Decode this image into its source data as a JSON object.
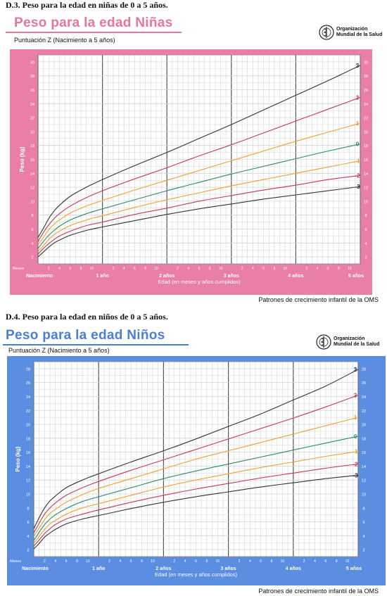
{
  "charts": [
    {
      "id": "girls",
      "section_heading": "D.3. Peso para la edad en niñas de 0 a 5 años.",
      "big_title": "Peso para la edad Niñas",
      "z_label": "Puntuación Z  (Nacimiento a 5 años)",
      "who_line1": "Organización",
      "who_line2": "Mundial de la Salud",
      "footer": "Patrones de crecimiento infantil de la OMS",
      "colors": {
        "frame": "#e97ea6",
        "title": "#e8759f",
        "bg": "#ffffff",
        "gridline": "#d4d4d4",
        "major": "#555555"
      }
    },
    {
      "id": "boys",
      "section_heading": "D.4. Peso para la edad en niños de 0 a 5 años.",
      "big_title": "Peso para la edad Niños",
      "z_label": "Puntuación Z (Nacimiento a 5 años)",
      "who_line1": "Organización",
      "who_line2": "Mundial de la Salud",
      "footer": "Patrones de crecimiento infantil de la OMS",
      "colors": {
        "frame": "#5b8ee0",
        "title": "#4a7fd6",
        "bg": "#ffffff",
        "gridline": "#d4d4d4",
        "major": "#555555"
      }
    }
  ],
  "chart_data": [
    {
      "type": "line",
      "title": "Peso para la edad Niñas",
      "subtitle": "Puntuación Z  (Nacimiento a 5 años)",
      "xlabel": "Edad (en meses y años cumplidos)",
      "ylabel": "Peso (kg)",
      "x_unit_label": "Meses",
      "xlim": [
        0,
        60
      ],
      "ylim": [
        1,
        31
      ],
      "y_ticks": [
        2,
        4,
        6,
        8,
        10,
        12,
        14,
        16,
        18,
        20,
        22,
        24,
        26,
        28,
        30
      ],
      "year_labels": [
        "Nacimiento",
        "1 año",
        "2 años",
        "3 años",
        "4 años",
        "5 años"
      ],
      "month_tick_labels": [
        "2",
        "4",
        "6",
        "8",
        "10"
      ],
      "grid": true,
      "legend": "right end labels",
      "x": [
        0,
        1,
        2,
        3,
        4,
        6,
        9,
        12,
        18,
        24,
        30,
        36,
        42,
        48,
        54,
        60
      ],
      "series": [
        {
          "name": "3",
          "color": "#333333",
          "values": [
            4.8,
            6.1,
            7.5,
            8.6,
            9.4,
            10.7,
            12.0,
            13.1,
            15.1,
            17.0,
            19.0,
            21.0,
            23.1,
            25.2,
            27.3,
            29.5
          ]
        },
        {
          "name": "2",
          "color": "#c03a5c",
          "values": [
            4.2,
            5.5,
            6.6,
            7.5,
            8.2,
            9.3,
            10.5,
            11.5,
            13.2,
            14.8,
            16.5,
            18.1,
            19.8,
            21.5,
            23.2,
            24.9
          ]
        },
        {
          "name": "1",
          "color": "#f0a030",
          "values": [
            3.7,
            4.8,
            5.9,
            6.7,
            7.3,
            8.3,
            9.3,
            10.1,
            11.6,
            13.0,
            14.4,
            15.8,
            17.2,
            18.6,
            19.9,
            21.2
          ]
        },
        {
          "name": "0",
          "color": "#2a8a6a",
          "values": [
            3.2,
            4.2,
            5.1,
            5.8,
            6.4,
            7.3,
            8.2,
            8.9,
            10.2,
            11.5,
            12.7,
            13.9,
            15.0,
            16.1,
            17.2,
            18.2
          ]
        },
        {
          "name": "-1",
          "color": "#f0a030",
          "values": [
            2.8,
            3.6,
            4.5,
            5.2,
            5.7,
            6.5,
            7.3,
            7.9,
            9.1,
            10.2,
            11.2,
            12.2,
            13.1,
            14.0,
            14.9,
            15.8
          ]
        },
        {
          "name": "-2",
          "color": "#c03a5c",
          "values": [
            2.4,
            3.2,
            3.9,
            4.5,
            5.0,
            5.7,
            6.5,
            7.0,
            8.1,
            9.0,
            10.0,
            10.8,
            11.6,
            12.3,
            13.1,
            13.7
          ]
        },
        {
          "name": "-3",
          "color": "#333333",
          "values": [
            2.0,
            2.7,
            3.4,
            4.0,
            4.4,
            5.1,
            5.8,
            6.3,
            7.2,
            8.1,
            8.9,
            9.6,
            10.3,
            10.9,
            11.5,
            12.1
          ]
        }
      ]
    },
    {
      "type": "line",
      "title": "Peso para la edad Niños",
      "subtitle": "Puntuación Z (Nacimiento a 5 años)",
      "xlabel": "Edad (en meses y años cumplidos)",
      "ylabel": "Peso (kg)",
      "x_unit_label": "Meses",
      "xlim": [
        0,
        60
      ],
      "ylim": [
        1,
        29
      ],
      "y_ticks": [
        2,
        4,
        6,
        8,
        10,
        12,
        14,
        16,
        18,
        20,
        22,
        24,
        26,
        28
      ],
      "year_labels": [
        "Nacimiento",
        "1 año",
        "2 años",
        "3 años",
        "4 años",
        "5 años"
      ],
      "month_tick_labels": [
        "2",
        "4",
        "6",
        "8",
        "10"
      ],
      "grid": true,
      "legend": "right end labels",
      "x": [
        0,
        1,
        2,
        3,
        4,
        6,
        9,
        12,
        18,
        24,
        30,
        36,
        42,
        48,
        54,
        60
      ],
      "series": [
        {
          "name": "3",
          "color": "#333333",
          "values": [
            5.0,
            6.6,
            8.0,
            9.0,
            9.7,
            10.9,
            12.0,
            12.9,
            14.6,
            16.2,
            17.9,
            19.7,
            21.5,
            23.5,
            25.5,
            27.9
          ]
        },
        {
          "name": "2",
          "color": "#c03a5c",
          "values": [
            4.4,
            5.8,
            7.1,
            8.0,
            8.7,
            9.8,
            10.9,
            11.8,
            13.4,
            14.9,
            16.4,
            17.9,
            19.4,
            20.9,
            22.5,
            24.2
          ]
        },
        {
          "name": "1",
          "color": "#f0a030",
          "values": [
            3.9,
            5.1,
            6.3,
            7.2,
            7.8,
            8.8,
            9.9,
            10.8,
            12.2,
            13.6,
            15.0,
            16.2,
            17.4,
            18.6,
            19.8,
            21.0
          ]
        },
        {
          "name": "0",
          "color": "#2a8a6a",
          "values": [
            3.3,
            4.5,
            5.6,
            6.4,
            7.0,
            7.9,
            8.9,
            9.6,
            10.9,
            12.2,
            13.3,
            14.3,
            15.3,
            16.3,
            17.3,
            18.3
          ]
        },
        {
          "name": "-1",
          "color": "#f0a030",
          "values": [
            2.9,
            3.9,
            4.9,
            5.7,
            6.2,
            7.1,
            8.0,
            8.6,
            9.8,
            11.0,
            12.0,
            12.9,
            13.8,
            14.6,
            15.4,
            16.1
          ]
        },
        {
          "name": "-2",
          "color": "#c03a5c",
          "values": [
            2.5,
            3.4,
            4.3,
            5.0,
            5.6,
            6.4,
            7.1,
            7.7,
            8.8,
            9.8,
            10.7,
            11.5,
            12.3,
            13.0,
            13.7,
            14.3
          ]
        },
        {
          "name": "-3",
          "color": "#333333",
          "values": [
            2.1,
            2.9,
            3.8,
            4.4,
            4.9,
            5.7,
            6.4,
            6.9,
            7.9,
            8.8,
            9.6,
            10.3,
            11.0,
            11.6,
            12.2,
            12.7
          ]
        }
      ]
    }
  ]
}
